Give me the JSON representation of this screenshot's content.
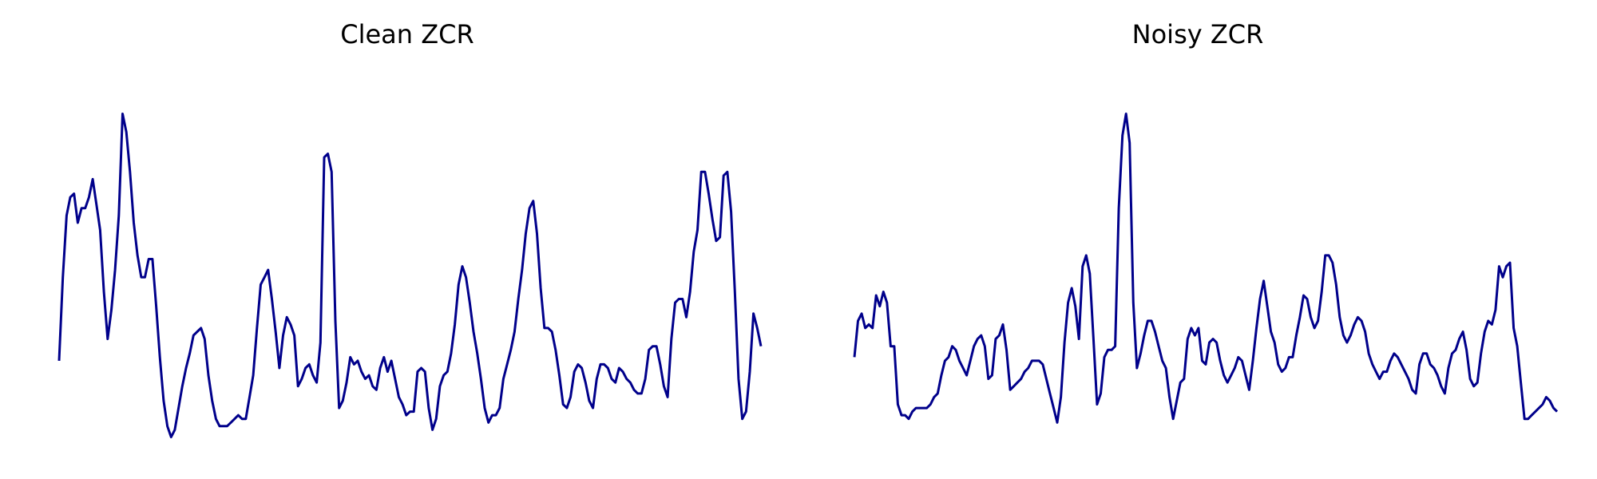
{
  "line_color": "#00008B",
  "chart_data": [
    {
      "type": "line",
      "title": "Clean ZCR",
      "axes_visible": false,
      "grid": false,
      "ylim": [
        0,
        1
      ],
      "values": [
        0.22,
        0.45,
        0.62,
        0.67,
        0.68,
        0.6,
        0.64,
        0.64,
        0.67,
        0.72,
        0.65,
        0.58,
        0.41,
        0.28,
        0.36,
        0.47,
        0.62,
        0.9,
        0.85,
        0.74,
        0.6,
        0.51,
        0.45,
        0.45,
        0.5,
        0.5,
        0.37,
        0.23,
        0.11,
        0.04,
        0.01,
        0.03,
        0.09,
        0.15,
        0.2,
        0.24,
        0.29,
        0.3,
        0.31,
        0.28,
        0.18,
        0.11,
        0.06,
        0.04,
        0.04,
        0.04,
        0.05,
        0.06,
        0.07,
        0.06,
        0.06,
        0.12,
        0.18,
        0.31,
        0.43,
        0.45,
        0.47,
        0.39,
        0.3,
        0.2,
        0.29,
        0.34,
        0.32,
        0.29,
        0.15,
        0.17,
        0.2,
        0.21,
        0.18,
        0.16,
        0.27,
        0.78,
        0.79,
        0.74,
        0.33,
        0.09,
        0.11,
        0.16,
        0.23,
        0.21,
        0.22,
        0.19,
        0.17,
        0.18,
        0.15,
        0.14,
        0.2,
        0.23,
        0.19,
        0.22,
        0.17,
        0.12,
        0.1,
        0.07,
        0.08,
        0.08,
        0.19,
        0.2,
        0.19,
        0.09,
        0.03,
        0.06,
        0.15,
        0.18,
        0.19,
        0.24,
        0.32,
        0.43,
        0.48,
        0.45,
        0.38,
        0.3,
        0.24,
        0.17,
        0.09,
        0.05,
        0.07,
        0.07,
        0.09,
        0.17,
        0.21,
        0.25,
        0.3,
        0.39,
        0.47,
        0.57,
        0.64,
        0.66,
        0.57,
        0.42,
        0.31,
        0.31,
        0.3,
        0.25,
        0.18,
        0.1,
        0.09,
        0.12,
        0.19,
        0.21,
        0.2,
        0.16,
        0.11,
        0.09,
        0.17,
        0.21,
        0.21,
        0.2,
        0.17,
        0.16,
        0.2,
        0.19,
        0.17,
        0.16,
        0.14,
        0.13,
        0.13,
        0.17,
        0.25,
        0.26,
        0.26,
        0.21,
        0.15,
        0.12,
        0.28,
        0.38,
        0.39,
        0.39,
        0.34,
        0.41,
        0.52,
        0.58,
        0.74,
        0.74,
        0.68,
        0.61,
        0.55,
        0.56,
        0.73,
        0.74,
        0.63,
        0.41,
        0.17,
        0.06,
        0.08,
        0.19,
        0.35,
        0.31,
        0.26
      ]
    },
    {
      "type": "line",
      "title": "Noisy ZCR",
      "axes_visible": false,
      "grid": false,
      "ylim": [
        0,
        1
      ],
      "values": [
        0.23,
        0.33,
        0.35,
        0.31,
        0.32,
        0.31,
        0.4,
        0.37,
        0.41,
        0.38,
        0.26,
        0.26,
        0.1,
        0.07,
        0.07,
        0.06,
        0.08,
        0.09,
        0.09,
        0.09,
        0.09,
        0.1,
        0.12,
        0.13,
        0.18,
        0.22,
        0.23,
        0.26,
        0.25,
        0.22,
        0.2,
        0.18,
        0.22,
        0.26,
        0.28,
        0.29,
        0.26,
        0.17,
        0.18,
        0.28,
        0.29,
        0.32,
        0.25,
        0.14,
        0.15,
        0.16,
        0.17,
        0.19,
        0.2,
        0.22,
        0.22,
        0.22,
        0.21,
        0.17,
        0.13,
        0.09,
        0.05,
        0.12,
        0.27,
        0.38,
        0.42,
        0.37,
        0.28,
        0.48,
        0.51,
        0.46,
        0.28,
        0.1,
        0.13,
        0.23,
        0.25,
        0.25,
        0.26,
        0.64,
        0.84,
        0.9,
        0.82,
        0.38,
        0.2,
        0.24,
        0.29,
        0.33,
        0.33,
        0.3,
        0.26,
        0.22,
        0.2,
        0.12,
        0.06,
        0.11,
        0.16,
        0.17,
        0.28,
        0.31,
        0.29,
        0.31,
        0.22,
        0.21,
        0.27,
        0.28,
        0.27,
        0.22,
        0.18,
        0.16,
        0.18,
        0.2,
        0.23,
        0.22,
        0.18,
        0.14,
        0.22,
        0.31,
        0.39,
        0.44,
        0.37,
        0.3,
        0.27,
        0.21,
        0.19,
        0.2,
        0.23,
        0.23,
        0.29,
        0.34,
        0.4,
        0.39,
        0.34,
        0.31,
        0.33,
        0.41,
        0.51,
        0.51,
        0.49,
        0.43,
        0.34,
        0.29,
        0.27,
        0.29,
        0.32,
        0.34,
        0.33,
        0.3,
        0.24,
        0.21,
        0.19,
        0.17,
        0.19,
        0.19,
        0.22,
        0.24,
        0.23,
        0.21,
        0.19,
        0.17,
        0.14,
        0.13,
        0.21,
        0.24,
        0.24,
        0.21,
        0.2,
        0.18,
        0.15,
        0.13,
        0.2,
        0.24,
        0.25,
        0.28,
        0.3,
        0.25,
        0.17,
        0.15,
        0.16,
        0.24,
        0.3,
        0.33,
        0.32,
        0.36,
        0.48,
        0.45,
        0.48,
        0.49,
        0.31,
        0.26,
        0.16,
        0.06,
        0.06,
        0.07,
        0.08,
        0.09,
        0.1,
        0.12,
        0.11,
        0.09,
        0.08
      ]
    }
  ]
}
